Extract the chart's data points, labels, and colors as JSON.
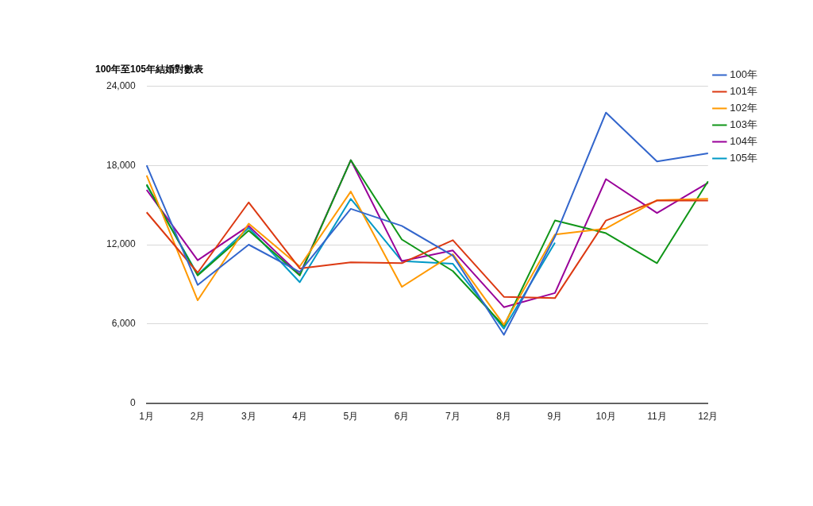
{
  "chart_data": {
    "type": "line",
    "title": "100年至105年結婚對數表",
    "categories": [
      "1月",
      "2月",
      "3月",
      "4月",
      "5月",
      "6月",
      "7月",
      "8月",
      "9月",
      "10月",
      "11月",
      "12月"
    ],
    "series": [
      {
        "name": "100年",
        "color": "#3366cc",
        "values": [
          18000,
          8950,
          12000,
          9940,
          14710,
          13420,
          11170,
          5180,
          12600,
          22000,
          18300,
          18920
        ]
      },
      {
        "name": "101年",
        "color": "#dc3912",
        "values": [
          14450,
          9880,
          15200,
          10200,
          10660,
          10600,
          12340,
          8050,
          7950,
          13830,
          15330,
          15330
        ]
      },
      {
        "name": "102年",
        "color": "#ff9900",
        "values": [
          17240,
          7790,
          13590,
          10350,
          16020,
          8810,
          11270,
          5940,
          12770,
          13220,
          15370,
          15470
        ]
      },
      {
        "name": "103年",
        "color": "#109618",
        "values": [
          16550,
          9670,
          13070,
          9670,
          18400,
          12390,
          10000,
          5840,
          13830,
          12870,
          10600,
          16800
        ]
      },
      {
        "name": "104年",
        "color": "#990099",
        "values": [
          16150,
          10820,
          13420,
          9730,
          18400,
          10760,
          11560,
          7270,
          8340,
          16960,
          14400,
          16680
        ]
      },
      {
        "name": "105年",
        "color": "#0099c6",
        "values": [
          16500,
          9730,
          13280,
          9160,
          15470,
          10760,
          10550,
          5640,
          12150,
          null,
          null,
          null
        ]
      }
    ],
    "ylim": [
      0,
      24000
    ],
    "yticks": [
      0,
      {
        "value": 6000,
        "label": "6,000"
      },
      {
        "value": 12000,
        "label": "12,000"
      },
      {
        "value": 18000,
        "label": "18,000"
      },
      {
        "value": 24000,
        "label": "24,000"
      }
    ],
    "grid": "y",
    "legend": "top right",
    "marker": "none",
    "line_style": "solid"
  }
}
